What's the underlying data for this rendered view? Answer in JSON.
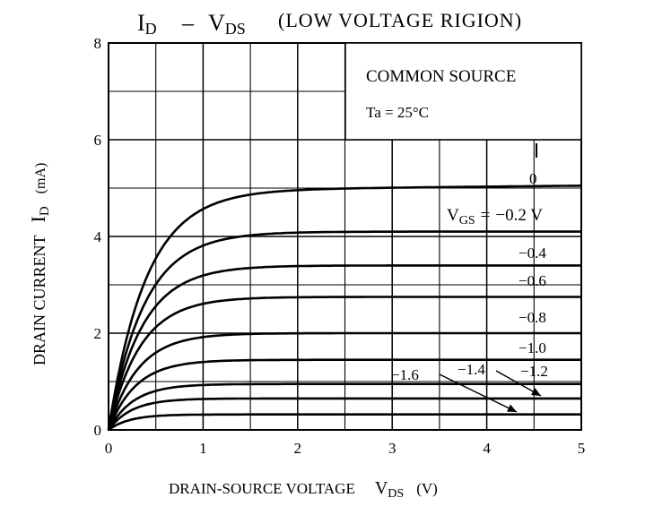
{
  "chart_data": {
    "type": "line",
    "title": {
      "main": "I",
      "main_sub": "D",
      "dash": "–",
      "v": "V",
      "v_sub": "DS",
      "rest": "(LOW VOLTAGE RIGION)"
    },
    "annotation": {
      "line1": "COMMON SOURCE",
      "line2": "Ta = 25°C"
    },
    "xlabel": {
      "text": "DRAIN-SOURCE VOLTAGE",
      "v": "V",
      "v_sub": "DS",
      "unit": "(V)"
    },
    "ylabel": {
      "text": "DRAIN CURRENT",
      "i": "I",
      "i_sub": "D",
      "unit": "(mA)"
    },
    "xlim": [
      0,
      5
    ],
    "ylim": [
      0,
      8
    ],
    "x_ticks": [
      "0",
      "1",
      "2",
      "3",
      "4",
      "5"
    ],
    "y_ticks": [
      "0",
      "2",
      "4",
      "6",
      "8"
    ],
    "grid": true,
    "series_labels": {
      "vgs_prefix": "V",
      "vgs_sub": "GS",
      "vgs_eq": "=",
      "labels": [
        "0",
        "−0.2 V",
        "−0.4",
        "−0.6",
        "−0.8",
        "−1.0",
        "−1.2",
        "−1.4",
        "−1.6"
      ]
    },
    "series": [
      {
        "vgs": 0.0,
        "isat": 4.95
      },
      {
        "vgs": -0.2,
        "isat": 4.1
      },
      {
        "vgs": -0.4,
        "isat": 3.4
      },
      {
        "vgs": -0.6,
        "isat": 2.75
      },
      {
        "vgs": -0.8,
        "isat": 2.0
      },
      {
        "vgs": -1.0,
        "isat": 1.45
      },
      {
        "vgs": -1.2,
        "isat": 0.95
      },
      {
        "vgs": -1.4,
        "isat": 0.65
      },
      {
        "vgs": -1.6,
        "isat": 0.32
      }
    ]
  }
}
